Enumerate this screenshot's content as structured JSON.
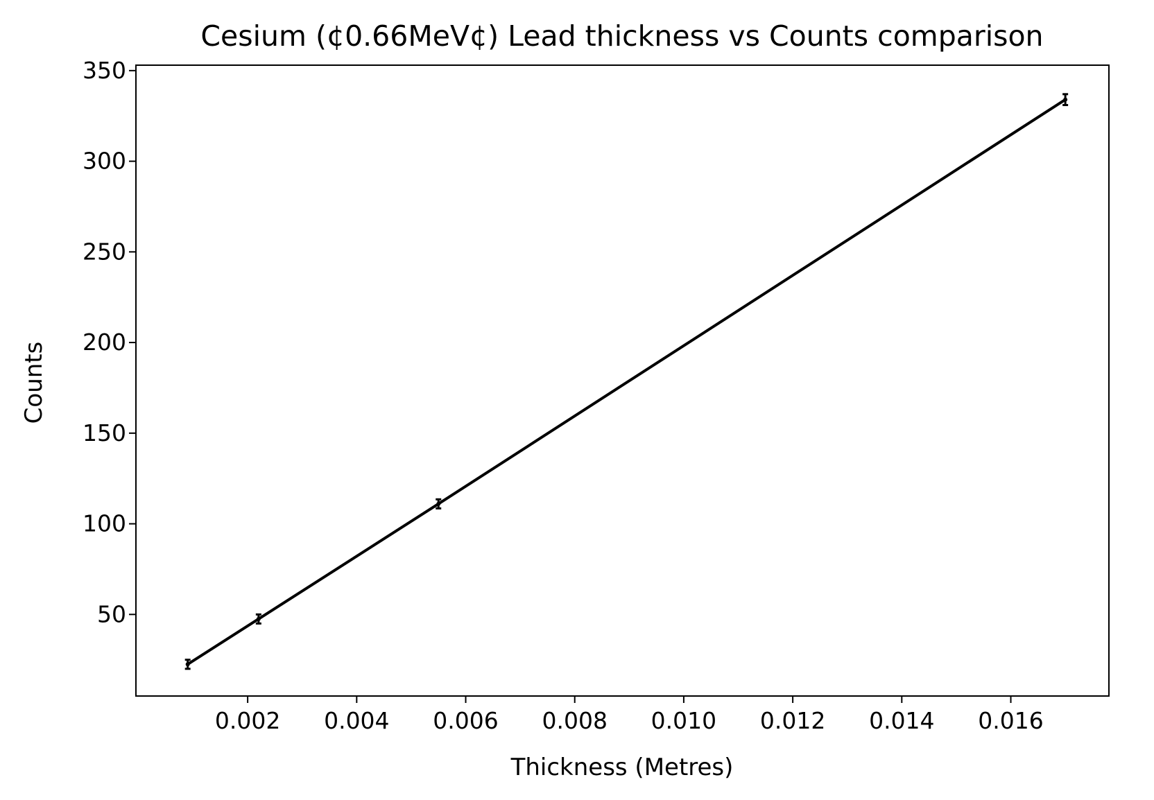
{
  "chart_data": {
    "type": "line",
    "title": "Cesium (¢0.66MeV¢) Lead thickness vs Counts comparison",
    "xlabel": "Thickness (Metres)",
    "ylabel": "Counts",
    "xlim": [
      -5e-05,
      0.0178
    ],
    "ylim": [
      5,
      353
    ],
    "xticks": [
      0.002,
      0.004,
      0.006,
      0.008,
      0.01,
      0.012,
      0.014,
      0.016
    ],
    "xtick_labels": [
      "0.002",
      "0.004",
      "0.006",
      "0.008",
      "0.010",
      "0.012",
      "0.014",
      "0.016"
    ],
    "yticks": [
      50,
      100,
      150,
      200,
      250,
      300,
      350
    ],
    "ytick_labels": [
      "50",
      "100",
      "150",
      "200",
      "250",
      "300",
      "350"
    ],
    "grid": false,
    "series": [
      {
        "x": [
          0.0009,
          0.0022,
          0.0055,
          0.017
        ],
        "y": [
          22.5,
          47.5,
          111,
          334
        ],
        "yerr": [
          2.5,
          2.5,
          2.5,
          3
        ],
        "color": "#000000"
      }
    ]
  }
}
